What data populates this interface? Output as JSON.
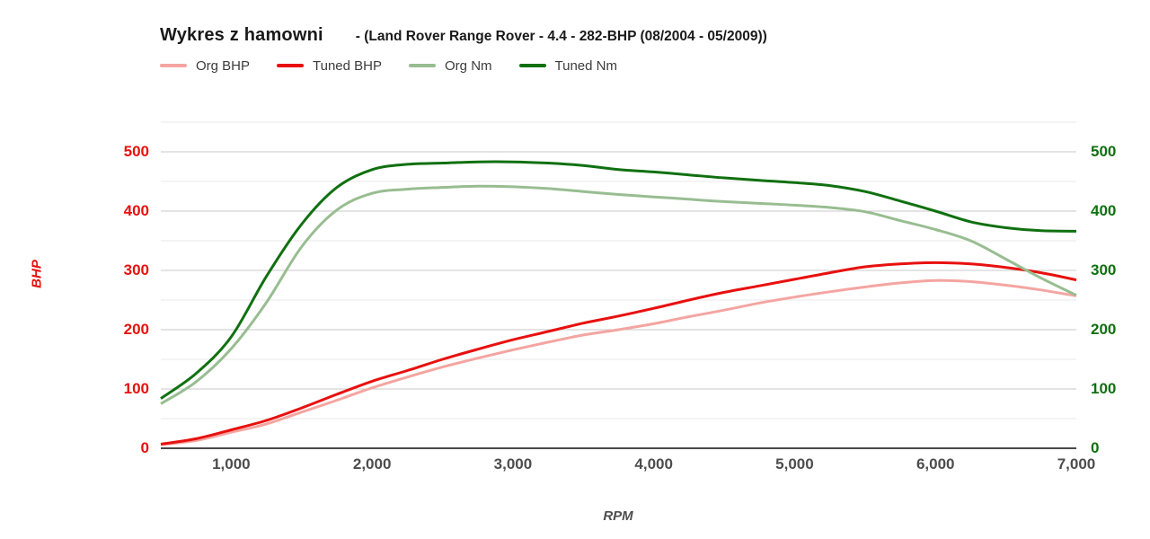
{
  "header": {
    "title": "Wykres z hamowni",
    "subtitle": "- (Land Rover Range Rover - 4.4 - 282-BHP (08/2004 - 05/2009))"
  },
  "legend": {
    "items": [
      {
        "label": "Org BHP",
        "color": "#f4a5a1"
      },
      {
        "label": "Tuned BHP",
        "color": "#e8100e"
      },
      {
        "label": "Org Nm",
        "color": "#98bd91"
      },
      {
        "label": "Tuned Nm",
        "color": "#107010"
      }
    ]
  },
  "axes": {
    "left": {
      "label": "BHP",
      "color": "#e8100e",
      "ticks": [
        "0",
        "100",
        "200",
        "300",
        "400",
        "500"
      ]
    },
    "right": {
      "color": "#107010",
      "ticks": [
        "0",
        "100",
        "200",
        "300",
        "400",
        "500"
      ]
    },
    "x": {
      "label": "RPM",
      "color": "#4d4d4d",
      "ticks": [
        "1,000",
        "2,000",
        "3,000",
        "4,000",
        "5,000",
        "6,000",
        "7,000"
      ]
    }
  },
  "chart_data": {
    "type": "line",
    "title": "Wykres z hamowni - (Land Rover Range Rover - 4.4 - 282-BHP (08/2004 - 05/2009))",
    "xlabel": "RPM",
    "ylabel_left": "BHP",
    "xlim": [
      500,
      7000
    ],
    "ylim": [
      0,
      550
    ],
    "x_tick_values": [
      1000,
      2000,
      3000,
      4000,
      5000,
      6000,
      7000
    ],
    "y_tick_values": [
      0,
      100,
      200,
      300,
      400,
      500
    ],
    "minor_grid_step": 50,
    "grid": {
      "major_color": "#c9c9c9",
      "minor_color": "#eaeaea",
      "baseline_color": "#4a4a4a"
    },
    "legend_position": "top",
    "x": [
      500,
      750,
      1000,
      1250,
      1500,
      1750,
      2000,
      2250,
      2500,
      2750,
      3000,
      3250,
      3500,
      3750,
      4000,
      4250,
      4500,
      4750,
      5000,
      5250,
      5500,
      5750,
      6000,
      6250,
      6500,
      6750,
      7000
    ],
    "series": [
      {
        "name": "Org BHP",
        "axis": "left",
        "color": "#f4a5a1",
        "values": [
          6,
          13,
          27,
          41,
          61,
          81,
          102,
          120,
          137,
          152,
          166,
          179,
          191,
          200,
          210,
          222,
          233,
          245,
          255,
          264,
          272,
          279,
          283,
          281,
          275,
          267,
          257
        ]
      },
      {
        "name": "Tuned BHP",
        "axis": "left",
        "color": "#e8100e",
        "values": [
          7,
          16,
          31,
          47,
          68,
          91,
          113,
          131,
          150,
          167,
          183,
          197,
          211,
          223,
          236,
          250,
          263,
          274,
          285,
          296,
          306,
          311,
          313,
          311,
          305,
          296,
          284
        ]
      },
      {
        "name": "Org Nm",
        "axis": "right",
        "color": "#98bd91",
        "values": [
          75,
          112,
          168,
          246,
          340,
          402,
          430,
          437,
          440,
          442,
          441,
          438,
          433,
          428,
          424,
          420,
          416,
          413,
          410,
          406,
          399,
          384,
          369,
          350,
          319,
          287,
          258
        ]
      },
      {
        "name": "Tuned Nm",
        "axis": "right",
        "color": "#107010",
        "values": [
          84,
          126,
          188,
          290,
          378,
          440,
          470,
          479,
          481,
          483,
          483,
          481,
          477,
          470,
          466,
          461,
          456,
          452,
          448,
          443,
          433,
          417,
          400,
          382,
          372,
          367,
          366
        ]
      }
    ]
  }
}
